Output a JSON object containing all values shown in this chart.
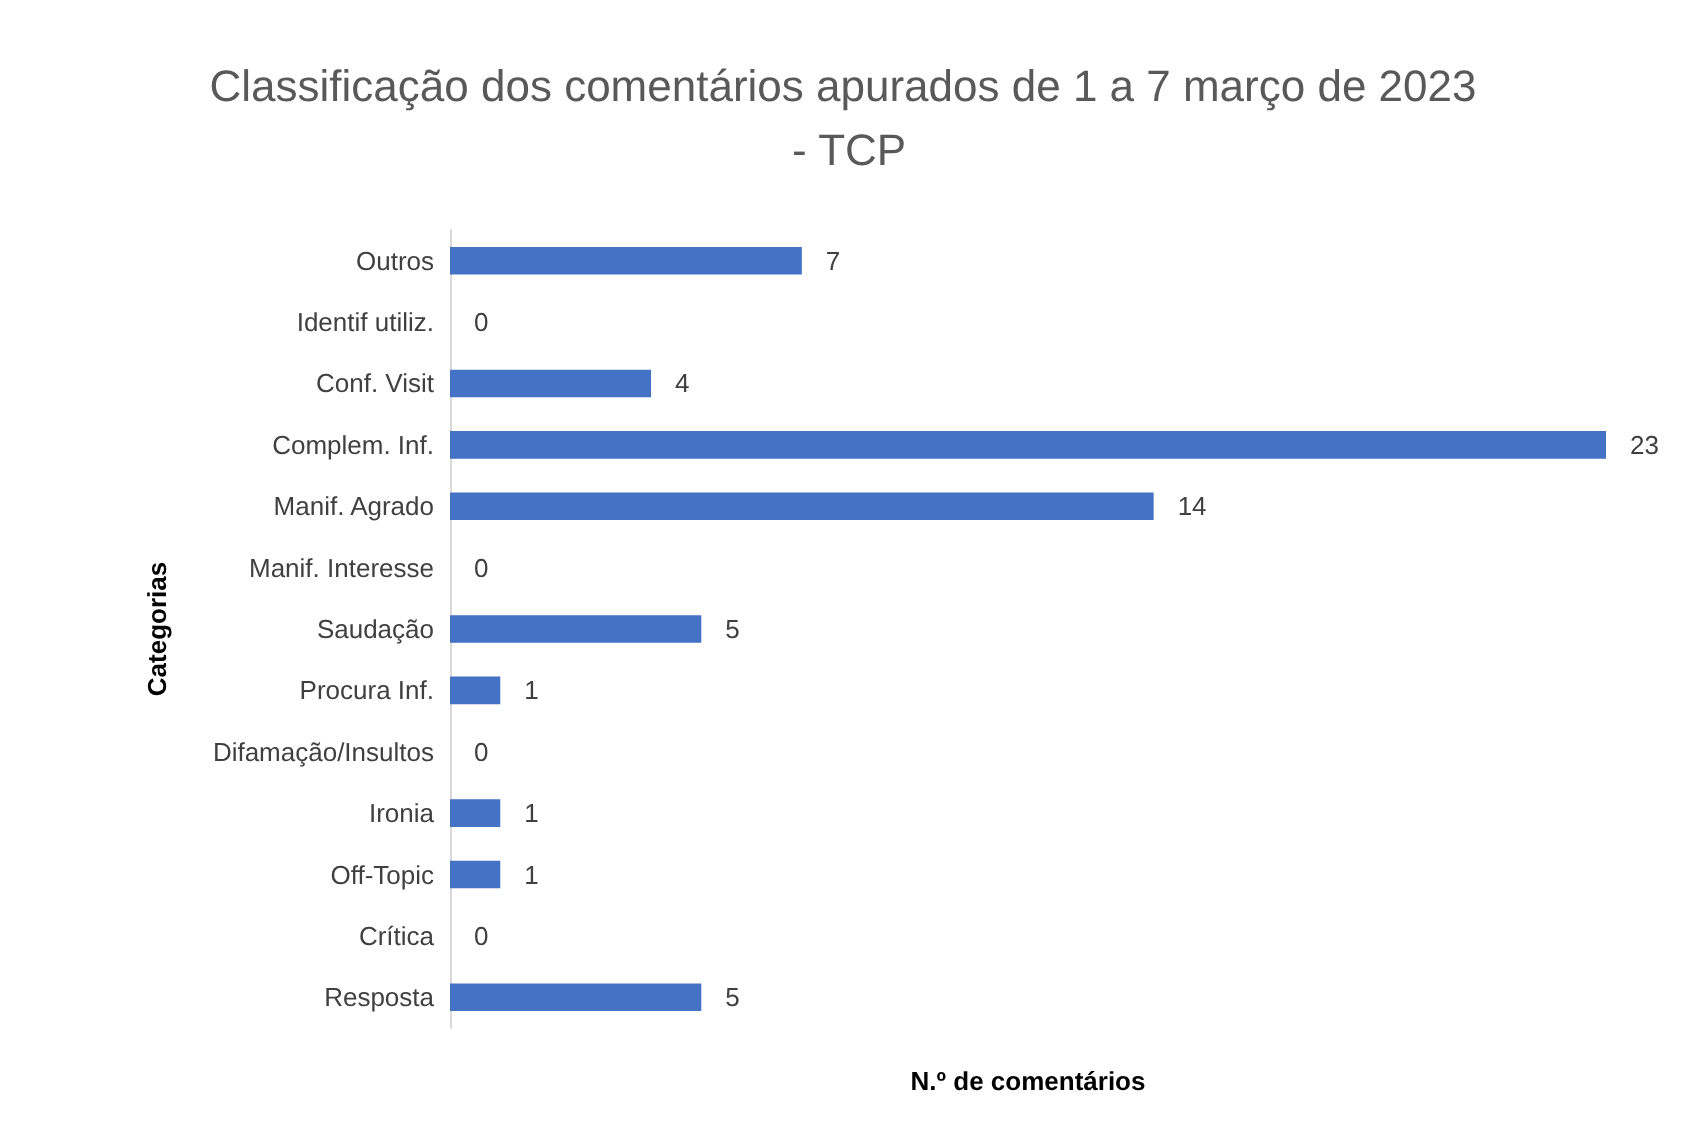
{
  "chart_data": {
    "type": "bar",
    "orientation": "horizontal",
    "title": "Classificação dos comentários apurados de 1 a 7 março de 2023 - TCP",
    "categories": [
      "Outros",
      "Identif utiliz.",
      "Conf. Visit",
      "Complem. Inf.",
      "Manif. Agrado",
      "Manif. Interesse",
      "Saudação",
      "Procura Inf.",
      "Difamação/Insultos",
      "Ironia",
      "Off-Topic",
      "Crítica",
      "Resposta"
    ],
    "values": [
      7,
      0,
      4,
      23,
      14,
      0,
      5,
      1,
      0,
      1,
      1,
      0,
      5
    ],
    "color": "#4472c4",
    "xlabel": "N.º de comentários",
    "ylabel": "Categorias",
    "data_labels": true
  }
}
